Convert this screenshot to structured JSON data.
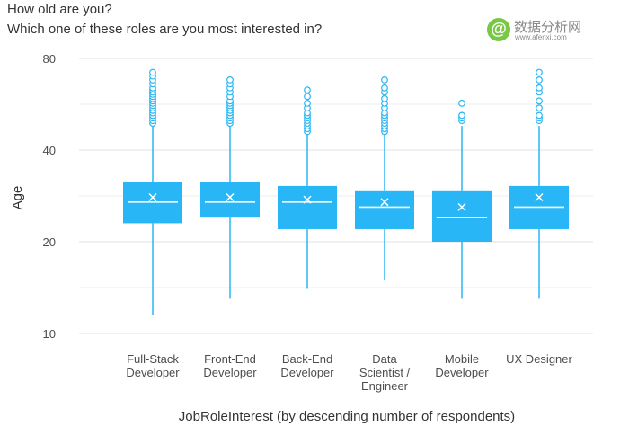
{
  "titles": {
    "line1": "How old are you?",
    "line2": "Which one of these roles are you most interested in?"
  },
  "watermark": {
    "symbol": "@",
    "text": "数据分析网",
    "url": "www.afenxi.com"
  },
  "colors": {
    "box": "#29b6f6",
    "whisker": "#29b6f6",
    "median": "#ffffff",
    "grid": "#e6e6e6",
    "axis_text": "#4d4d4d"
  },
  "chart_data": {
    "type": "box",
    "scale": "log",
    "ylabel": "Age",
    "xlabel": "JobRoleInterest (by descending number of respondents)",
    "yticks": [
      10,
      20,
      40,
      80
    ],
    "ylim": [
      10,
      88
    ],
    "grid": true,
    "categories": [
      [
        "Full-Stack",
        "Developer"
      ],
      [
        "Front-End",
        "Developer"
      ],
      [
        "Back-End",
        "Developer"
      ],
      [
        "Data",
        "Scientist /",
        "Engineer"
      ],
      [
        "Mobile",
        "Developer"
      ],
      [
        "UX Designer"
      ]
    ],
    "series": [
      {
        "category": "Full-Stack Developer",
        "min": 11.5,
        "q1": 23,
        "median": 27,
        "q3": 31.5,
        "max": 48,
        "mean": 28,
        "outliers": [
          49,
          50,
          51,
          52,
          53,
          54,
          55,
          56,
          57,
          58,
          59,
          60,
          61,
          62,
          63,
          64,
          66,
          68,
          70,
          72
        ]
      },
      {
        "category": "Front-End Developer",
        "min": 13,
        "q1": 24,
        "median": 27,
        "q3": 31.5,
        "max": 48,
        "mean": 28,
        "outliers": [
          49,
          50,
          51,
          52,
          53,
          54,
          55,
          56,
          57,
          58,
          60,
          62,
          64,
          66,
          68
        ]
      },
      {
        "category": "Back-End Developer",
        "min": 14,
        "q1": 22,
        "median": 27,
        "q3": 30.5,
        "max": 45,
        "mean": 27.5,
        "outliers": [
          46,
          47,
          48,
          49,
          50,
          51,
          52,
          53,
          55,
          57,
          60,
          63
        ]
      },
      {
        "category": "Data Scientist / Engineer",
        "min": 15,
        "q1": 22,
        "median": 26,
        "q3": 29.5,
        "max": 45,
        "mean": 27,
        "outliers": [
          46,
          47,
          48,
          49,
          50,
          51,
          52,
          53,
          55,
          57,
          59,
          62,
          64,
          68
        ]
      },
      {
        "category": "Mobile Developer",
        "min": 13,
        "q1": 20,
        "median": 24,
        "q3": 29.5,
        "max": 48,
        "mean": 26,
        "outliers": [
          50,
          51,
          52,
          57
        ]
      },
      {
        "category": "UX Designer",
        "min": 13,
        "q1": 22,
        "median": 26,
        "q3": 30.5,
        "max": 48,
        "mean": 28,
        "outliers": [
          50,
          51,
          52,
          55,
          58,
          62,
          64,
          68,
          72
        ]
      }
    ]
  }
}
